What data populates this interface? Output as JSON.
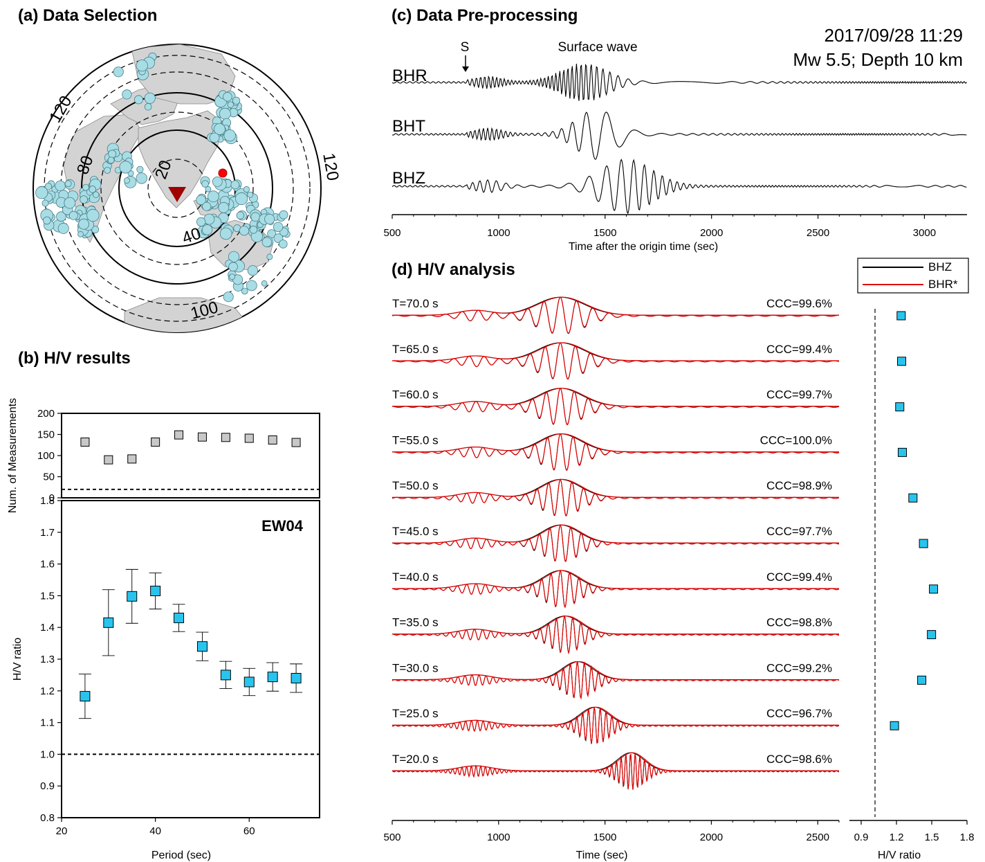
{
  "panels": {
    "a_title": "(a) Data Selection",
    "b_title": "(b) H/V results",
    "c_title": "(c) Data Pre-processing",
    "d_title": "(d) H/V analysis"
  },
  "map": {
    "distance_labels": [
      "20",
      "40",
      "80",
      "100",
      "120",
      "120"
    ],
    "station_color": "#a00000",
    "event_color": "#a8dde6",
    "highlight_event_color": "#ff0000",
    "land_color": "#d3d3d3"
  },
  "preprocessing": {
    "event_date": "2017/09/28 11:29",
    "event_info": "Mw 5.5; Depth 10 km",
    "s_label": "S",
    "surface_label": "Surface wave",
    "components": [
      "BHR",
      "BHT",
      "BHZ"
    ],
    "xlabel": "Time after the origin time (sec)",
    "xticks": [
      500,
      1000,
      1500,
      2000,
      2500,
      3000
    ]
  },
  "analysis": {
    "legend": [
      {
        "name": "BHZ",
        "color": "#000000"
      },
      {
        "name": "BHR*",
        "color": "#e00000"
      }
    ],
    "rows": [
      {
        "period_label": "T=70.0 s",
        "ccc": "CCC=99.6%"
      },
      {
        "period_label": "T=65.0 s",
        "ccc": "CCC=99.4%"
      },
      {
        "period_label": "T=60.0 s",
        "ccc": "CCC=99.7%"
      },
      {
        "period_label": "T=55.0 s",
        "ccc": "CCC=100.0%"
      },
      {
        "period_label": "T=50.0 s",
        "ccc": "CCC=98.9%"
      },
      {
        "period_label": "T=45.0 s",
        "ccc": "CCC=97.7%"
      },
      {
        "period_label": "T=40.0 s",
        "ccc": "CCC=99.4%"
      },
      {
        "period_label": "T=35.0 s",
        "ccc": "CCC=98.8%"
      },
      {
        "period_label": "T=30.0 s",
        "ccc": "CCC=99.2%"
      },
      {
        "period_label": "T=25.0 s",
        "ccc": "CCC=96.7%"
      },
      {
        "period_label": "T=20.0 s",
        "ccc": "CCC=98.6%"
      }
    ],
    "xlabel": "Time (sec)",
    "xticks": [
      500,
      1000,
      1500,
      2000,
      2500
    ],
    "hv_xlabel": "H/V ratio",
    "hv_xticks": [
      "0.9",
      "1.2",
      "1.5",
      "1.8"
    ]
  },
  "chart_data": [
    {
      "type": "scatter",
      "title": "",
      "xlabel": "",
      "ylabel": "Num. of Measurements",
      "xlim": [
        20,
        75
      ],
      "ylim": [
        0,
        200
      ],
      "yticks": [
        0,
        50,
        100,
        150,
        200
      ],
      "threshold": 20,
      "x": [
        25,
        30,
        35,
        40,
        45,
        50,
        55,
        60,
        65,
        70
      ],
      "y": [
        132,
        90,
        92,
        132,
        149,
        144,
        143,
        141,
        137,
        131
      ],
      "color": "#c8c8c8"
    },
    {
      "type": "scatter",
      "title": "EW04",
      "xlabel": "Period (sec)",
      "ylabel": "H/V ratio",
      "xlim": [
        20,
        75
      ],
      "ylim": [
        0.8,
        1.8
      ],
      "xticks": [
        20,
        40,
        60
      ],
      "yticks": [
        "0.8",
        "0.9",
        "1.0",
        "1.1",
        "1.2",
        "1.3",
        "1.4",
        "1.5",
        "1.6",
        "1.7",
        "1.8"
      ],
      "reference_line": 1.0,
      "x": [
        25,
        30,
        35,
        40,
        45,
        50,
        55,
        60,
        65,
        70
      ],
      "y": [
        1.183,
        1.415,
        1.498,
        1.515,
        1.43,
        1.34,
        1.25,
        1.228,
        1.244,
        1.24
      ],
      "err": [
        0.07,
        0.104,
        0.085,
        0.057,
        0.043,
        0.045,
        0.043,
        0.043,
        0.045,
        0.045
      ],
      "color": "#29c4ee"
    },
    {
      "type": "scatter",
      "title": "",
      "xlabel": "H/V ratio",
      "ylabel": "",
      "xlim": [
        0.8,
        1.8
      ],
      "reference_line": 1.0,
      "periods": [
        70,
        65,
        60,
        55,
        50,
        45,
        40,
        35,
        30,
        25,
        20
      ],
      "y": [
        1.24,
        1.244,
        1.228,
        1.25,
        1.34,
        1.43,
        1.515,
        1.498,
        1.415,
        1.183,
        null
      ],
      "color": "#29c4ee"
    }
  ]
}
